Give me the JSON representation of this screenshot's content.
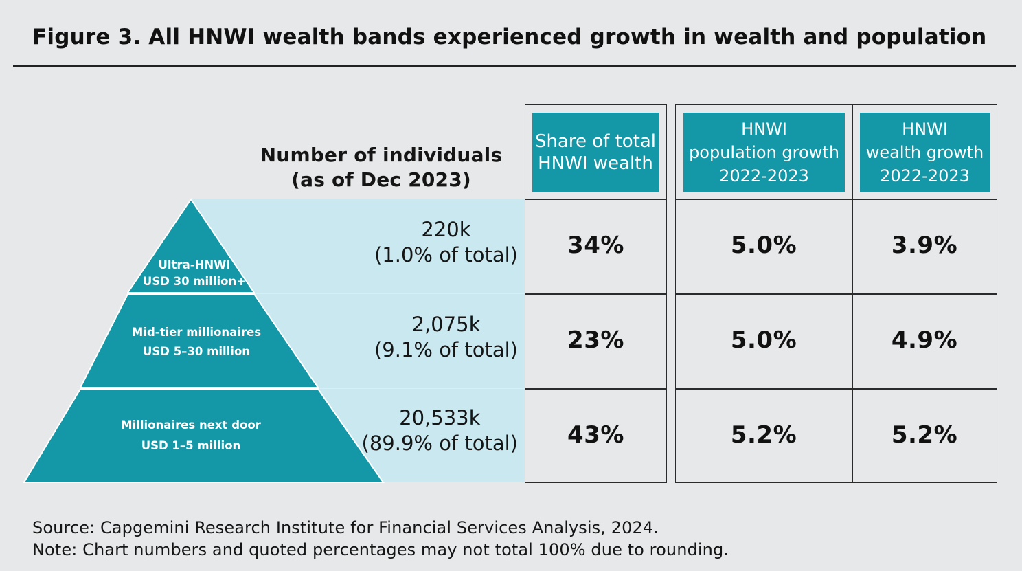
{
  "title": "Figure 3. All HNWI wealth bands experienced growth in wealth and population",
  "colors": {
    "teal": "#1498a8",
    "light_teal": "#c9e8ef",
    "background": "#e7e8e9"
  },
  "chart_data": {
    "type": "table",
    "count_header": [
      "Number of individuals",
      "(as of Dec 2023)"
    ],
    "columns": [
      [
        "Share of total",
        "HNWI wealth"
      ],
      [
        "HNWI",
        "population growth",
        "2022-2023"
      ],
      [
        "HNWI",
        "wealth growth",
        "2022-2023"
      ]
    ],
    "rows": [
      {
        "band": [
          "Ultra-HNWI",
          "USD 30 million+"
        ],
        "individuals": "220k",
        "share_of_population": "(1.0% of total)",
        "share_of_wealth": "34%",
        "population_growth": "5.0%",
        "wealth_growth": "3.9%"
      },
      {
        "band": [
          "Mid-tier millionaires",
          "USD 5–30 million"
        ],
        "individuals": "2,075k",
        "share_of_population": "(9.1% of total)",
        "share_of_wealth": "23%",
        "population_growth": "5.0%",
        "wealth_growth": "4.9%"
      },
      {
        "band": [
          "Millionaires next door",
          "USD 1–5 million"
        ],
        "individuals": "20,533k",
        "share_of_population": "(89.9% of total)",
        "share_of_wealth": "43%",
        "population_growth": "5.2%",
        "wealth_growth": "5.2%"
      }
    ]
  },
  "footer": {
    "source": "Source: Capgemini Research Institute for Financial Services Analysis, 2024.",
    "note": "Note: Chart numbers and quoted percentages may not total 100% due to rounding."
  }
}
